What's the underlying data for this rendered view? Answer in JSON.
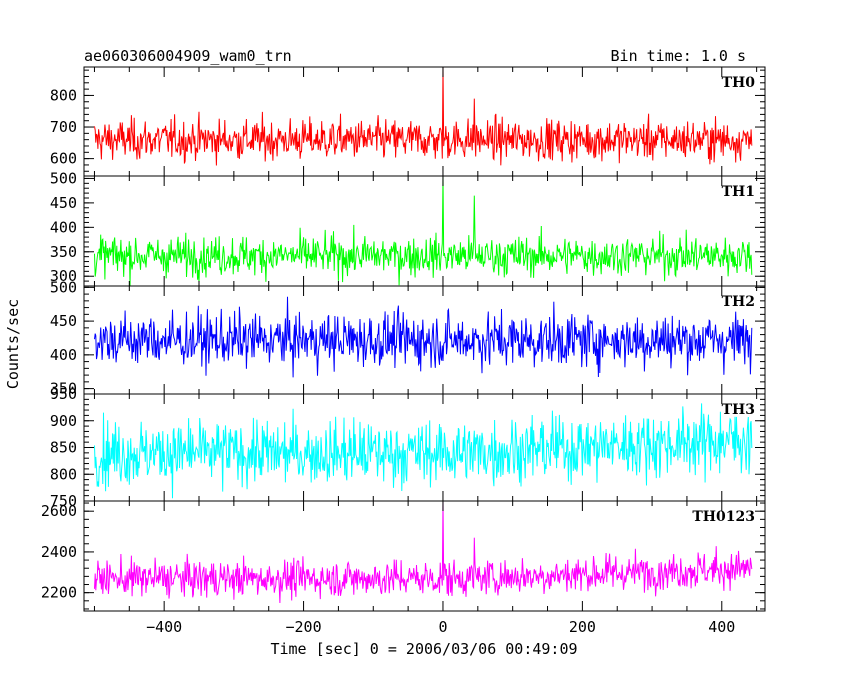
{
  "chart_data": {
    "type": "line",
    "title_left": "ae060306004909_wam0_trn",
    "title_right": "Bin time: 1.0 s",
    "xlabel": "Time [sec] 0 = 2006/03/06 00:49:09",
    "ylabel": "Counts/sec",
    "xlim": [
      -515,
      462
    ],
    "x_range": [
      -500,
      443
    ],
    "x_ticks": [
      -400,
      -200,
      0,
      200,
      400
    ],
    "x_tick_labels": [
      "−400",
      "−200",
      "0",
      "200",
      "400"
    ],
    "panels": [
      {
        "name": "TH0",
        "color": "#ff0000",
        "ylim": [
          545,
          890
        ],
        "yticks": [
          600,
          700,
          800
        ],
        "ytick_labels": [
          "600",
          "700",
          "800"
        ],
        "mean": 660,
        "sd": 32,
        "trend": 0,
        "spikes": [
          [
            0,
            890
          ],
          [
            45,
            790
          ]
        ]
      },
      {
        "name": "TH1",
        "color": "#00ff00",
        "ylim": [
          280,
          505
        ],
        "yticks": [
          300,
          350,
          400,
          450,
          500
        ],
        "ytick_labels": [
          "300",
          "350",
          "400",
          "450",
          "500"
        ],
        "mean": 342,
        "sd": 20,
        "trend": 0,
        "spikes": [
          [
            0,
            505
          ],
          [
            45,
            465
          ]
        ]
      },
      {
        "name": "TH2",
        "color": "#0000ff",
        "ylim": [
          342,
          502
        ],
        "yticks": [
          350,
          400,
          450,
          500
        ],
        "ytick_labels": [
          "350",
          "400",
          "450",
          "500"
        ],
        "mean": 422,
        "sd": 20,
        "trend": 0,
        "spikes": []
      },
      {
        "name": "TH3",
        "color": "#00ffff",
        "ylim": [
          750,
          950
        ],
        "yticks": [
          750,
          800,
          850,
          900,
          950
        ],
        "ytick_labels": [
          "750",
          "800",
          "850",
          "900",
          "950"
        ],
        "mean": 840,
        "sd": 30,
        "trend": 25,
        "spikes": []
      },
      {
        "name": "TH0123",
        "color": "#ff00ff",
        "ylim": [
          2110,
          2650
        ],
        "yticks": [
          2200,
          2400,
          2600
        ],
        "ytick_labels": [
          "2200",
          "2400",
          "2600"
        ],
        "mean": 2270,
        "sd": 45,
        "trend": 50,
        "spikes": [
          [
            0,
            2650
          ],
          [
            45,
            2470
          ]
        ]
      }
    ],
    "grid": false,
    "legend": "none"
  }
}
